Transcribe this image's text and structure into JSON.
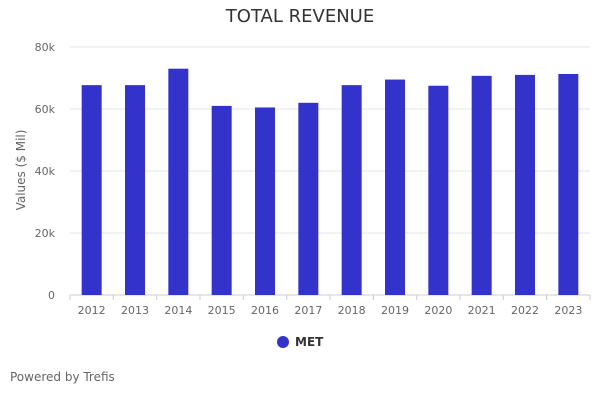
{
  "chart_data": {
    "type": "bar",
    "title": "TOTAL REVENUE",
    "ylabel": "Values ($ Mil)",
    "xlabel": "",
    "categories": [
      "2012",
      "2013",
      "2014",
      "2015",
      "2016",
      "2017",
      "2018",
      "2019",
      "2020",
      "2021",
      "2022",
      "2023"
    ],
    "series": [
      {
        "name": "MET",
        "color": "#3333cc",
        "values": [
          67700,
          67700,
          73000,
          61000,
          60500,
          62000,
          67700,
          69500,
          67500,
          70700,
          71000,
          71300
        ]
      }
    ],
    "ylim": [
      0,
      80000
    ],
    "yticks": [
      0,
      20000,
      40000,
      60000,
      80000
    ],
    "ytick_labels": [
      "0",
      "20k",
      "40k",
      "60k",
      "80k"
    ],
    "grid": true,
    "legend_position": "bottom-center"
  },
  "credit_text": "Powered by Trefis"
}
